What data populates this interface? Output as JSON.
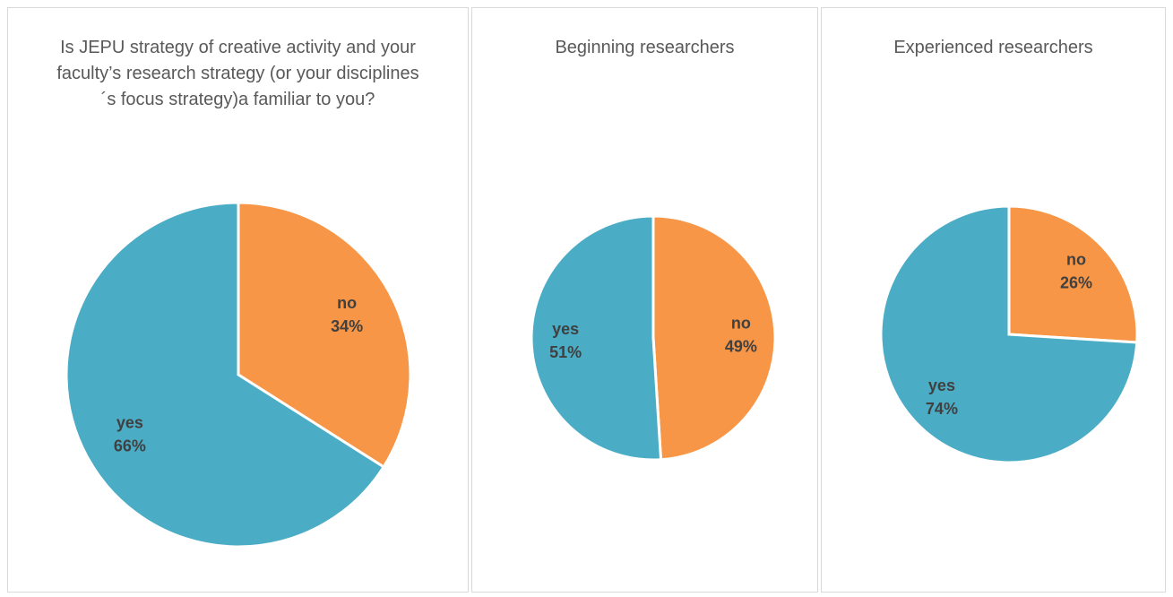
{
  "chart_data": [
    {
      "type": "pie",
      "title": "Is JEPU strategy of creative activity and your faculty’s research strategy (or your disciplines´s focus strategy)a familiar to you?",
      "categories": [
        "no",
        "yes"
      ],
      "values": [
        34,
        66
      ],
      "value_labels": [
        "34%",
        "66%"
      ],
      "colors": [
        "#f79646",
        "#4bacc6"
      ]
    },
    {
      "type": "pie",
      "title": "Beginning researchers",
      "categories": [
        "no",
        "yes"
      ],
      "values": [
        49,
        51
      ],
      "value_labels": [
        "49%",
        "51%"
      ],
      "colors": [
        "#f79646",
        "#4bacc6"
      ]
    },
    {
      "type": "pie",
      "title": "Experienced researchers",
      "categories": [
        "no",
        "yes"
      ],
      "values": [
        26,
        74
      ],
      "value_labels": [
        "26%",
        "74%"
      ],
      "colors": [
        "#f79646",
        "#4bacc6"
      ]
    }
  ]
}
